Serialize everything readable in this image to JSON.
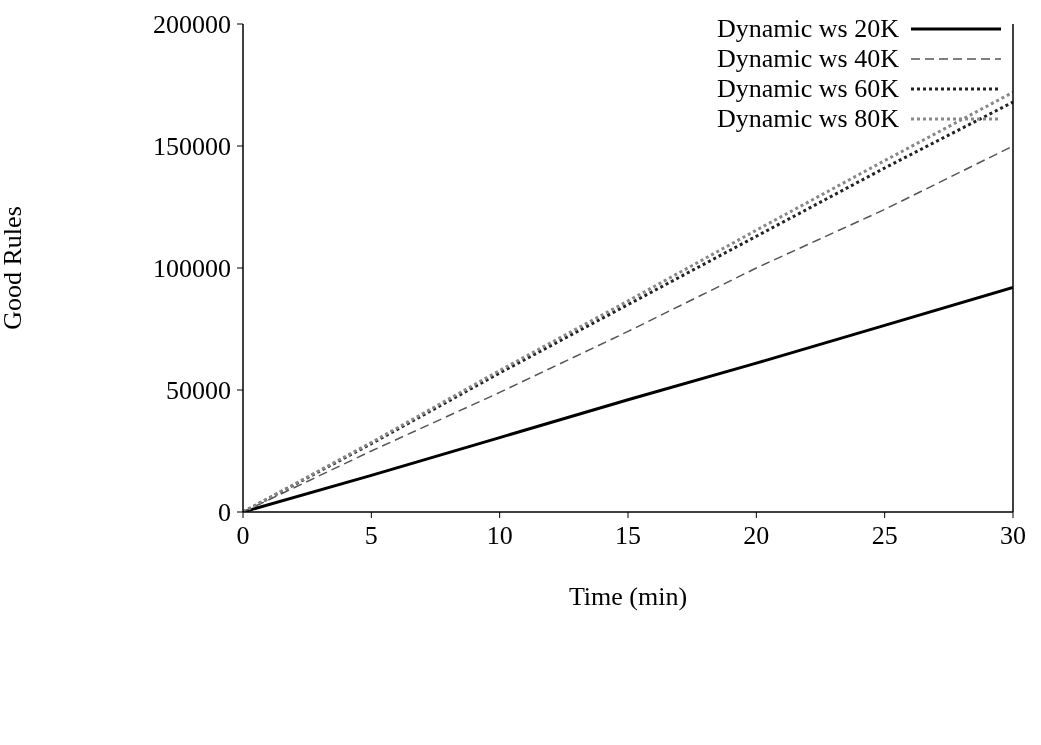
{
  "chart_data": {
    "type": "line",
    "xlabel": "Time (min)",
    "ylabel": "Good Rules",
    "x": [
      0,
      5,
      10,
      15,
      20,
      25,
      30
    ],
    "xlim": [
      0,
      30
    ],
    "xticks": [
      0,
      5,
      10,
      15,
      20,
      25,
      30
    ],
    "ylim": [
      0,
      200000
    ],
    "yticks": [
      0,
      50000,
      100000,
      150000,
      200000
    ],
    "grid": false,
    "legend": "top right",
    "series": [
      {
        "name": "Dynamic ws 20K",
        "color": "#000000",
        "line_style": "solid",
        "values": [
          0,
          15000,
          30500,
          46000,
          61000,
          76500,
          92000
        ]
      },
      {
        "name": "Dynamic ws 40K",
        "color": "#555555",
        "line_style": "dashed",
        "values": [
          0,
          25000,
          49000,
          74000,
          100000,
          124000,
          150000
        ]
      },
      {
        "name": "Dynamic ws 60K",
        "color": "#222222",
        "line_style": "dotted",
        "values": [
          0,
          28000,
          57000,
          85000,
          113000,
          141000,
          168000
        ]
      },
      {
        "name": "Dynamic ws 80K",
        "color": "#888888",
        "line_style": "dotted",
        "values": [
          0,
          28500,
          58000,
          86500,
          115500,
          144000,
          172000
        ]
      }
    ]
  }
}
